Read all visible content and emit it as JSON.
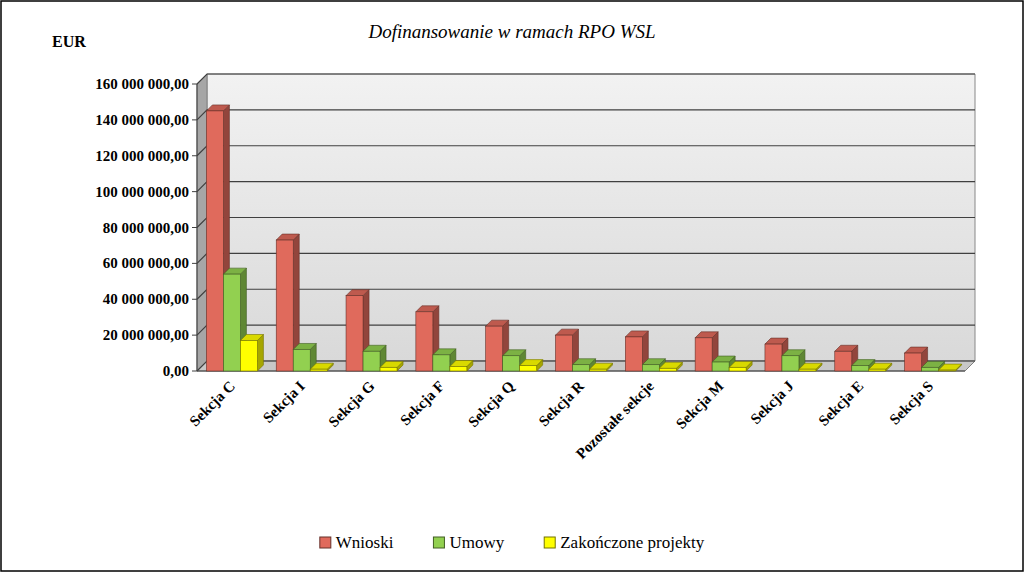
{
  "chart_data": {
    "type": "bar",
    "title": "Dofinansowanie w ramach RPO WSL",
    "y_label": "EUR",
    "categories": [
      "Sekcja C",
      "Sekcja I",
      "Sekcja G",
      "Sekcja F",
      "Sekcja Q",
      "Sekcja R",
      "Pozostałe sekcje",
      "Sekcja M",
      "Sekcja J",
      "Sekcja E",
      "Sekcja S"
    ],
    "series": [
      {
        "name": "Wnioski",
        "color": "#e06a5c",
        "values": [
          145000000,
          73000000,
          42000000,
          33000000,
          25000000,
          20000000,
          19000000,
          18500000,
          15000000,
          11000000,
          10000000
        ]
      },
      {
        "name": "Umowy",
        "color": "#92d050",
        "values": [
          54000000,
          12000000,
          11000000,
          9000000,
          8500000,
          3500000,
          3500000,
          5000000,
          8500000,
          3000000,
          2000000
        ]
      },
      {
        "name": "Zakończone projekty",
        "color": "#ffff00",
        "values": [
          17000000,
          1000000,
          2000000,
          2500000,
          3000000,
          1000000,
          1500000,
          2000000,
          1000000,
          1000000,
          500000
        ]
      }
    ],
    "ylim": [
      0,
      160000000
    ],
    "yticks": [
      {
        "value": 0,
        "label": "0,00"
      },
      {
        "value": 20000000,
        "label": "20 000 000,00"
      },
      {
        "value": 40000000,
        "label": "40 000 000,00"
      },
      {
        "value": 60000000,
        "label": "60 000 000,00"
      },
      {
        "value": 80000000,
        "label": "80 000 000,00"
      },
      {
        "value": 100000000,
        "label": "100 000 000,00"
      },
      {
        "value": 120000000,
        "label": "120 000 000,00"
      },
      {
        "value": 140000000,
        "label": "140 000 000,00"
      },
      {
        "value": 160000000,
        "label": "160 000 000,00"
      }
    ],
    "grid": true,
    "legend": "bottom"
  }
}
